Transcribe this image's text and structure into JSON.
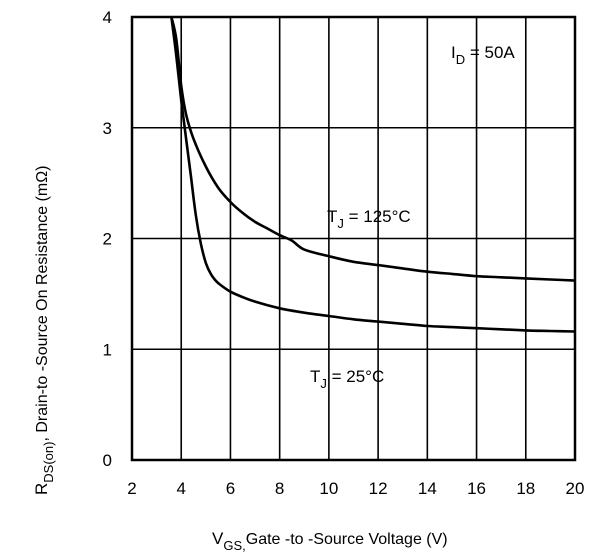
{
  "chart_data": {
    "type": "line",
    "title": "",
    "xlim": [
      2,
      20
    ],
    "ylim": [
      0,
      4
    ],
    "x_ticks": [
      2,
      4,
      6,
      8,
      10,
      12,
      14,
      16,
      18,
      20
    ],
    "y_ticks": [
      0,
      1,
      2,
      3,
      4
    ],
    "grid": true,
    "xlabel": {
      "symbol": "V",
      "subscript": "GS,",
      "text": "Gate -to -Source Voltage  (V)"
    },
    "ylabel": {
      "symbol": "R",
      "subscript": "DS(on)",
      "text": ",  Drain-to -Source On Resistance (mΩ)"
    },
    "annotations": {
      "id": {
        "main": "I",
        "sub": "D",
        "rest": " = 50A"
      }
    },
    "series": [
      {
        "name": "T_J = 125°C",
        "label": {
          "main": "T",
          "sub": "J",
          "rest": " = 125°C"
        },
        "x": [
          3.6,
          3.8,
          4.0,
          4.2,
          4.5,
          5.0,
          5.5,
          6.0,
          6.5,
          7.0,
          7.5,
          8.0,
          8.5,
          9.0,
          10,
          11,
          12,
          13,
          14,
          15,
          16,
          17,
          18,
          19,
          20
        ],
        "y": [
          4.0,
          3.8,
          3.38,
          3.12,
          2.9,
          2.65,
          2.46,
          2.33,
          2.23,
          2.15,
          2.09,
          2.03,
          1.98,
          1.9,
          1.84,
          1.79,
          1.76,
          1.73,
          1.7,
          1.68,
          1.66,
          1.65,
          1.64,
          1.63,
          1.62
        ]
      },
      {
        "name": "T_J = 25°C",
        "label": {
          "main": "T",
          "sub": "J",
          "rest": " = 25°C"
        },
        "x": [
          3.6,
          3.8,
          4.0,
          4.2,
          4.4,
          4.6,
          4.8,
          5.0,
          5.2,
          5.4,
          5.6,
          6.0,
          6.5,
          7.0,
          8.0,
          9.0,
          10,
          11,
          12,
          13,
          14,
          15,
          16,
          17,
          18,
          19,
          20
        ],
        "y": [
          4.0,
          3.65,
          3.25,
          2.9,
          2.55,
          2.2,
          1.95,
          1.78,
          1.68,
          1.62,
          1.58,
          1.52,
          1.47,
          1.43,
          1.37,
          1.33,
          1.3,
          1.27,
          1.25,
          1.23,
          1.21,
          1.2,
          1.19,
          1.18,
          1.17,
          1.165,
          1.16
        ]
      }
    ]
  }
}
